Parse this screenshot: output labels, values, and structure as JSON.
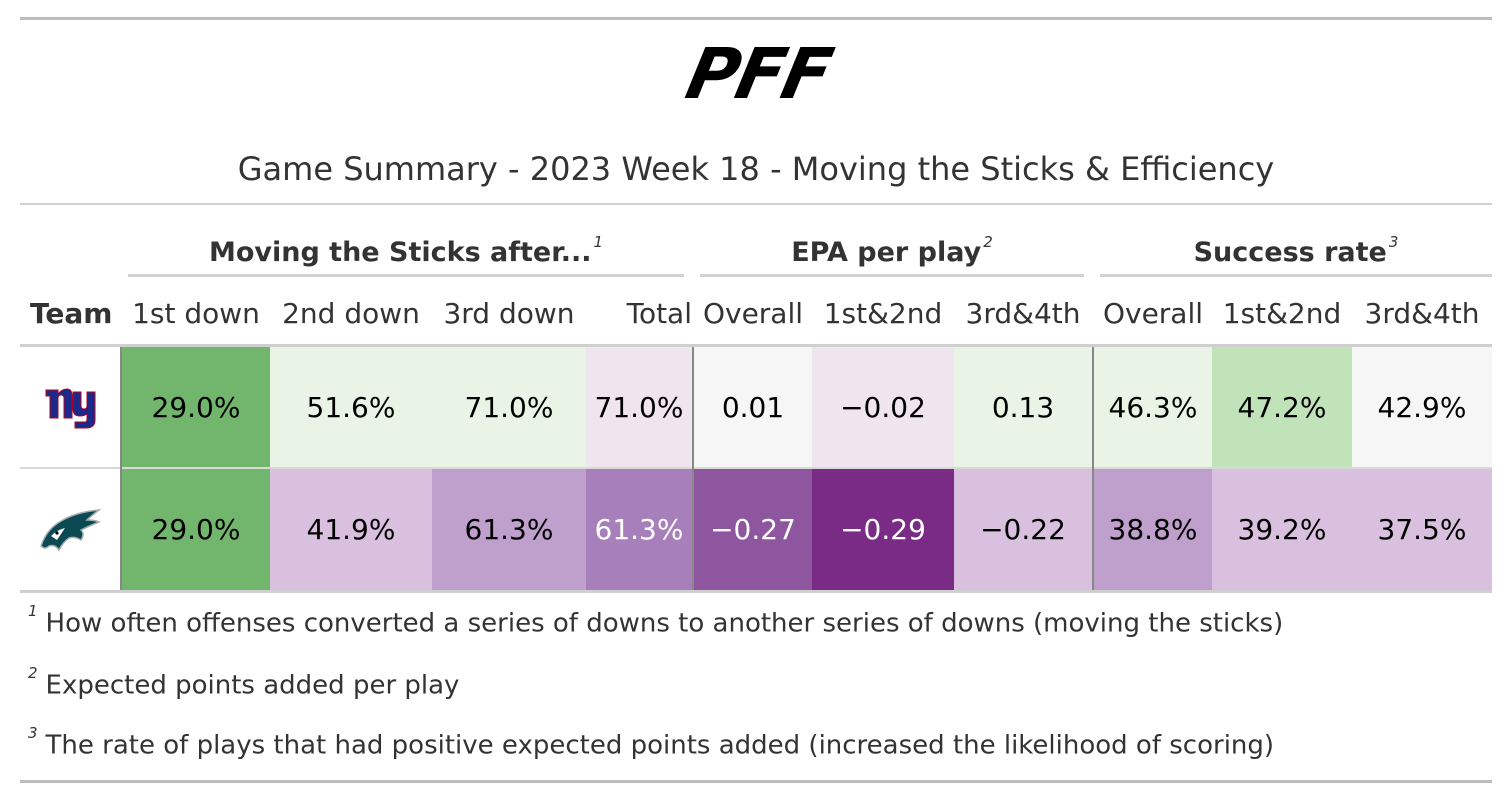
{
  "title": "Game Summary - 2023 Week 18 - Moving the Sticks & Efficiency",
  "logo_text": "PFF",
  "spanners": [
    {
      "label": "Moving the Sticks after...",
      "note": "1"
    },
    {
      "label": "EPA per play",
      "note": "2"
    },
    {
      "label": "Success rate",
      "note": "3"
    }
  ],
  "columns": [
    "Team",
    "1st down",
    "2nd down",
    "3rd down",
    "Total",
    "Overall",
    "1st&2nd",
    "3rd&4th",
    "Overall",
    "1st&2nd",
    "3rd&4th"
  ],
  "rows": [
    {
      "team_icon": "giants-logo-icon",
      "values": [
        "29.0%",
        "51.6%",
        "71.0%",
        "71.0%",
        "0.01",
        "−0.02",
        "0.13",
        "46.3%",
        "47.2%",
        "42.9%"
      ],
      "colors": [
        "#72b66e",
        "#e9f4e6",
        "#e9f4e6",
        "#efe5ef",
        "#f6f6f6",
        "#efe5ef",
        "#e9f4e6",
        "#e9f4e6",
        "#c1e3b9",
        "#f6f6f6"
      ]
    },
    {
      "team_icon": "eagles-logo-icon",
      "values": [
        "29.0%",
        "41.9%",
        "61.3%",
        "61.3%",
        "−0.27",
        "−0.29",
        "−0.22",
        "38.8%",
        "39.2%",
        "37.5%"
      ],
      "colors": [
        "#72b66e",
        "#d9c0de",
        "#bf9fcc",
        "#a77fbb",
        "#8e569f",
        "#7a2b85",
        "#d9c0de",
        "#bf9fcc",
        "#d9c0de",
        "#d9c0de"
      ]
    }
  ],
  "footnotes": [
    {
      "mark": "1",
      "text": "How often offenses converted a series of downs to another series of downs (moving the sticks)"
    },
    {
      "mark": "2",
      "text": "Expected points added per play"
    },
    {
      "mark": "3",
      "text": "The rate of plays that had positive expected points added (increased the likelihood of scoring)"
    }
  ],
  "chart_data": {
    "type": "table",
    "title": "Game Summary - 2023 Week 18 - Moving the Sticks & Efficiency",
    "column_groups": [
      {
        "name": "Moving the Sticks after...",
        "columns": [
          "1st down",
          "2nd down",
          "3rd down",
          "Total"
        ]
      },
      {
        "name": "EPA per play",
        "columns": [
          "Overall",
          "1st&2nd",
          "3rd&4th"
        ]
      },
      {
        "name": "Success rate",
        "columns": [
          "Overall",
          "1st&2nd",
          "3rd&4th"
        ]
      }
    ],
    "rows": [
      {
        "team": "NYG",
        "moving_sticks_pct": [
          29.0,
          51.6,
          71.0,
          71.0
        ],
        "epa": [
          0.01,
          -0.02,
          0.13
        ],
        "success_rate_pct": [
          46.3,
          47.2,
          42.9
        ]
      },
      {
        "team": "PHI",
        "moving_sticks_pct": [
          29.0,
          41.9,
          61.3,
          61.3
        ],
        "epa": [
          -0.27,
          -0.29,
          -0.22
        ],
        "success_rate_pct": [
          38.8,
          39.2,
          37.5
        ]
      }
    ]
  }
}
